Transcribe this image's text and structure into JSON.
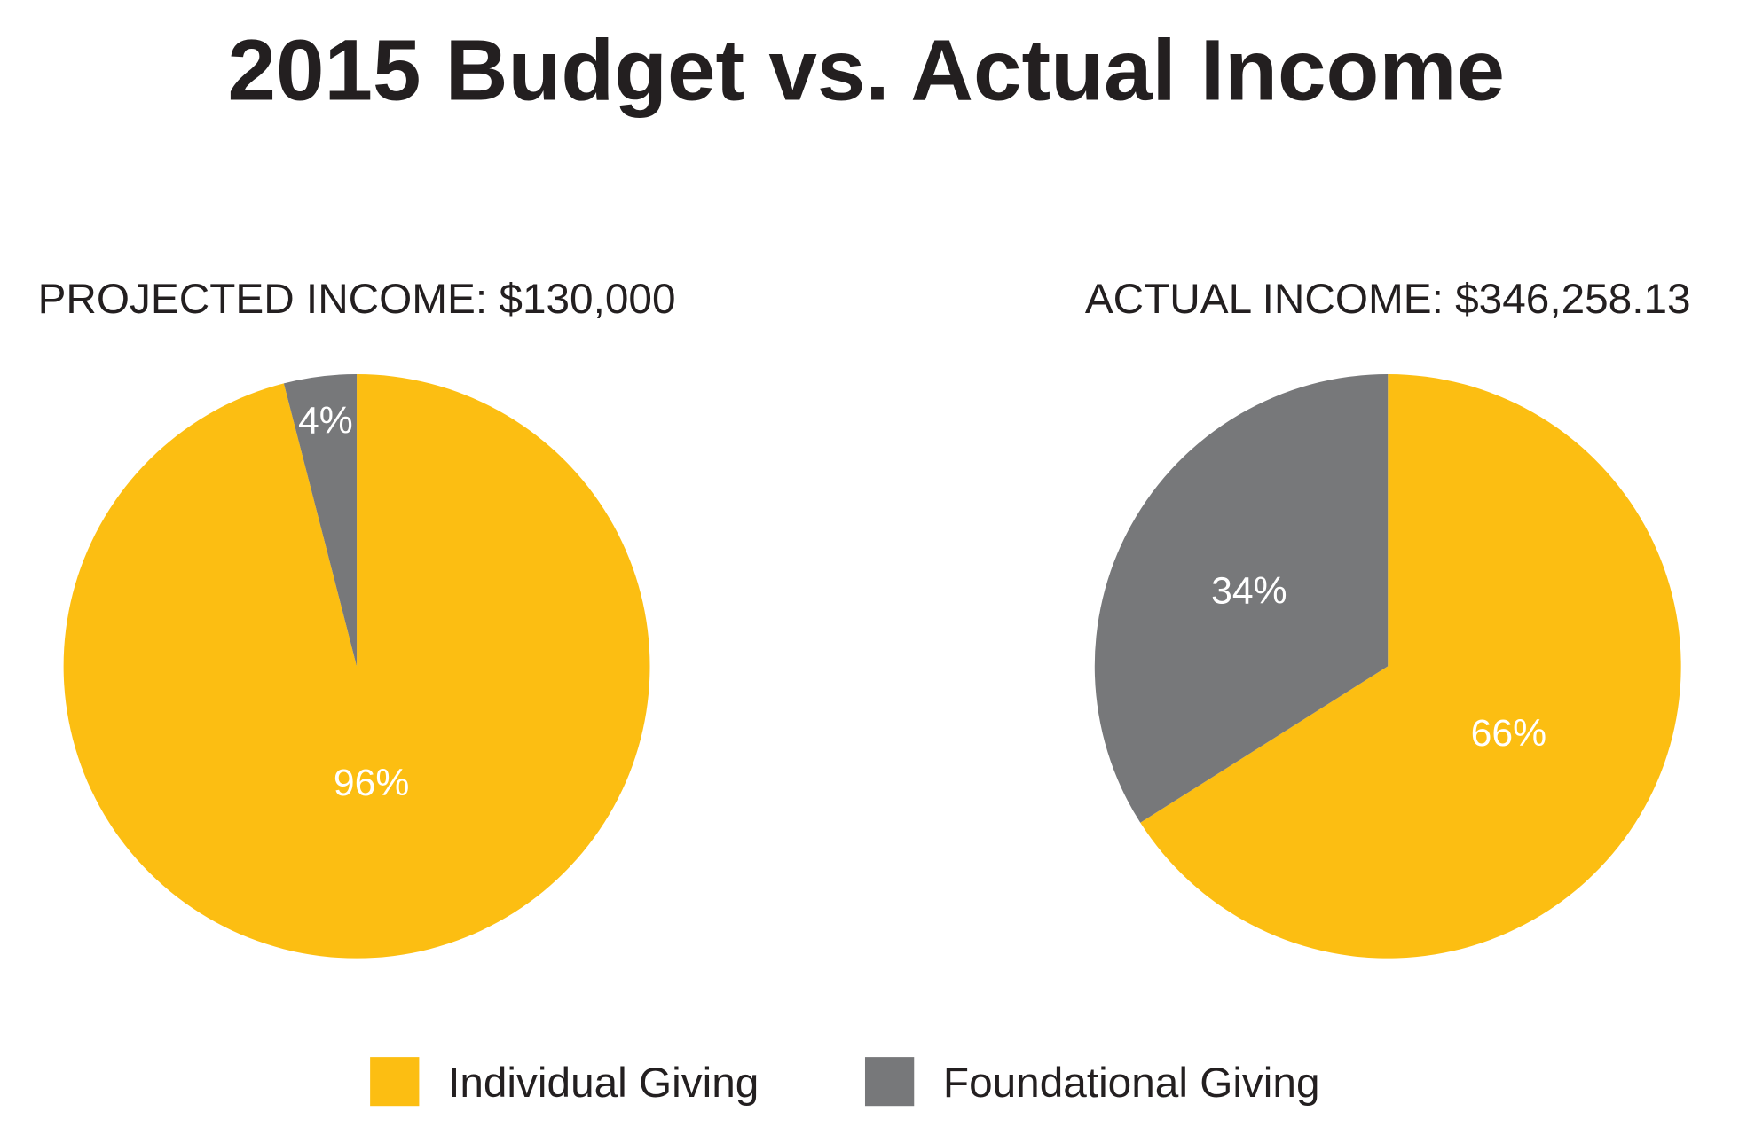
{
  "chart_data": [
    {
      "type": "pie",
      "title": "2015 Budget vs. Actual Income",
      "subtitle": "PROJECTED INCOME: $130,000",
      "categories": [
        "Individual Giving",
        "Foundational Giving"
      ],
      "values": [
        96,
        4
      ],
      "data_labels": [
        "96%",
        "4%"
      ],
      "colors": [
        "#FCBE12",
        "#77787A"
      ]
    },
    {
      "type": "pie",
      "subtitle": "ACTUAL INCOME: $346,258.13",
      "categories": [
        "Individual Giving",
        "Foundational Giving"
      ],
      "values": [
        66,
        34
      ],
      "data_labels": [
        "66%",
        "34%"
      ],
      "colors": [
        "#FCBE12",
        "#77787A"
      ]
    }
  ],
  "legend": {
    "placement": "bottom",
    "items": [
      {
        "label": "Individual Giving",
        "color": "#FCBE12"
      },
      {
        "label": "Foundational Giving",
        "color": "#77787A"
      }
    ]
  }
}
